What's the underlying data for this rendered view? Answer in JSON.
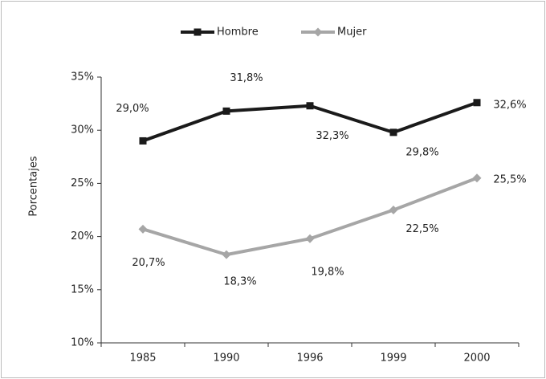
{
  "chart_data": {
    "type": "line",
    "y_label": "Porcentajes",
    "categories": [
      "1985",
      "1990",
      "1996",
      "1999",
      "2000"
    ],
    "series": [
      {
        "name": "Hombre",
        "color": "#1a1a1a",
        "marker": "square",
        "values": [
          29.0,
          31.8,
          32.3,
          29.8,
          32.6
        ],
        "value_labels": [
          "29,0%",
          "31,8%",
          "32,3%",
          "29,8%",
          "32,6%"
        ]
      },
      {
        "name": "Mujer",
        "color": "#a6a6a6",
        "marker": "diamond",
        "values": [
          20.7,
          18.3,
          19.8,
          22.5,
          25.5
        ],
        "value_labels": [
          "20,7%",
          "18,3%",
          "19,8%",
          "22,5%",
          "25,5%"
        ]
      }
    ],
    "ylim": [
      10,
      35
    ],
    "yticks": [
      {
        "value": 10,
        "label": "10%"
      },
      {
        "value": 15,
        "label": "15%"
      },
      {
        "value": 20,
        "label": "20%"
      },
      {
        "value": 25,
        "label": "25%"
      },
      {
        "value": 30,
        "label": "30%"
      },
      {
        "value": 35,
        "label": "35%"
      }
    ],
    "grid": false,
    "legend": "top"
  }
}
